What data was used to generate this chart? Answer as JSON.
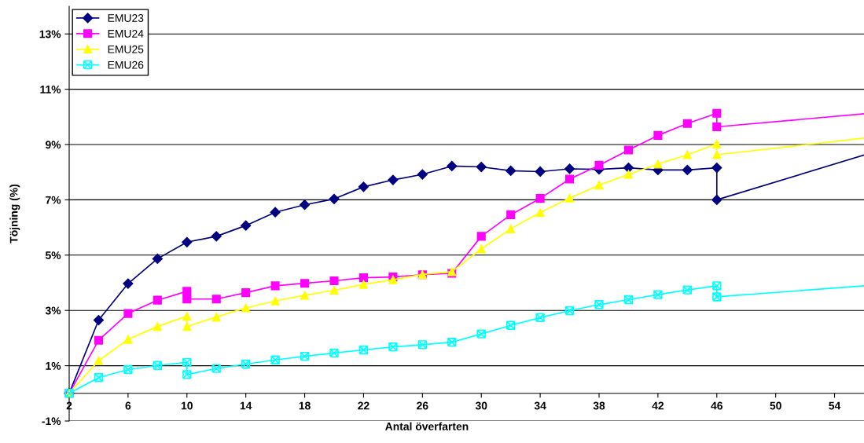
{
  "chart_data": {
    "type": "line",
    "xlabel": "Antal överfarten",
    "ylabel": "Töjning (%)",
    "xlim": [
      2,
      56
    ],
    "xticks": [
      2,
      6,
      10,
      14,
      18,
      22,
      26,
      30,
      34,
      38,
      42,
      46,
      50,
      54
    ],
    "ylim": [
      -1,
      14
    ],
    "yticks": [
      {
        "value": -1,
        "label": "-1%"
      },
      {
        "value": 1,
        "label": "1%"
      },
      {
        "value": 3,
        "label": "3%"
      },
      {
        "value": 5,
        "label": "5%"
      },
      {
        "value": 7,
        "label": "7%"
      },
      {
        "value": 9,
        "label": "9%"
      },
      {
        "value": 11,
        "label": "11%"
      },
      {
        "value": 13,
        "label": "13%"
      }
    ],
    "grid": "y",
    "legend": "top left",
    "line_style": "solid",
    "series": [
      {
        "name": "EMU23",
        "color": "#000080",
        "marker": "diamond",
        "x": [
          2,
          4,
          6,
          8,
          10,
          12,
          14,
          16,
          18,
          20,
          22,
          24,
          26,
          28,
          30,
          32,
          34,
          36,
          38,
          40,
          42,
          44,
          46,
          46,
          56
        ],
        "values": [
          0,
          2.65,
          3.97,
          4.87,
          5.47,
          5.68,
          6.07,
          6.55,
          6.82,
          7.03,
          7.47,
          7.72,
          7.92,
          8.22,
          8.19,
          8.05,
          8.02,
          8.12,
          8.1,
          8.16,
          8.08,
          8.08,
          8.16,
          7.0,
          8.62
        ]
      },
      {
        "name": "EMU24",
        "color": "#ff00ff",
        "marker": "square",
        "x": [
          2,
          4,
          6,
          8,
          10,
          10,
          12,
          14,
          16,
          18,
          20,
          22,
          24,
          26,
          28,
          30,
          32,
          34,
          36,
          38,
          40,
          42,
          44,
          46,
          46,
          56
        ],
        "values": [
          0,
          1.92,
          2.89,
          3.37,
          3.69,
          3.41,
          3.41,
          3.64,
          3.89,
          3.98,
          4.07,
          4.18,
          4.21,
          4.29,
          4.34,
          5.68,
          6.46,
          7.05,
          7.75,
          8.25,
          8.8,
          9.33,
          9.76,
          10.13,
          9.64,
          10.11
        ]
      },
      {
        "name": "EMU25",
        "color": "#ffff00",
        "marker": "triangle",
        "x": [
          2,
          4,
          6,
          8,
          10,
          10,
          12,
          14,
          16,
          18,
          20,
          22,
          24,
          26,
          28,
          30,
          32,
          34,
          36,
          38,
          40,
          42,
          44,
          46,
          46,
          56
        ],
        "values": [
          0,
          1.18,
          1.95,
          2.42,
          2.79,
          2.42,
          2.76,
          3.09,
          3.34,
          3.55,
          3.73,
          3.94,
          4.11,
          4.3,
          4.4,
          5.22,
          5.95,
          6.54,
          7.06,
          7.53,
          7.92,
          8.29,
          8.63,
          9.02,
          8.63,
          9.23
        ]
      },
      {
        "name": "EMU26",
        "color": "#00ffff",
        "marker": "cross",
        "x": [
          2,
          4,
          6,
          8,
          10,
          10,
          12,
          14,
          16,
          18,
          20,
          22,
          24,
          26,
          28,
          30,
          32,
          34,
          36,
          38,
          40,
          42,
          44,
          46,
          46,
          56
        ],
        "values": [
          0,
          0.57,
          0.86,
          1.01,
          1.12,
          0.68,
          0.9,
          1.06,
          1.21,
          1.34,
          1.46,
          1.57,
          1.68,
          1.76,
          1.85,
          2.15,
          2.46,
          2.74,
          2.99,
          3.21,
          3.39,
          3.57,
          3.74,
          3.89,
          3.49,
          3.89
        ]
      }
    ]
  }
}
